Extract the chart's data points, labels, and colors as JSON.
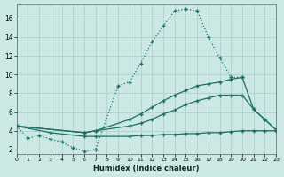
{
  "xlabel": "Humidex (Indice chaleur)",
  "bg_color": "#cce8e4",
  "grid_color": "#aaccc8",
  "line_color": "#1a7068",
  "xlim": [
    0,
    23
  ],
  "ylim": [
    1.5,
    17.5
  ],
  "xtick_vals": [
    0,
    1,
    2,
    3,
    4,
    5,
    6,
    7,
    8,
    9,
    10,
    11,
    12,
    13,
    14,
    15,
    16,
    17,
    18,
    19,
    20,
    21,
    22,
    23
  ],
  "ytick_vals": [
    2,
    4,
    6,
    8,
    10,
    12,
    14,
    16
  ],
  "curve_dotted_x": [
    0,
    1,
    2,
    3,
    4,
    5,
    6,
    7,
    9,
    10,
    11,
    12,
    13,
    14,
    15,
    16,
    17,
    18,
    19,
    20
  ],
  "curve_dotted_y": [
    4.5,
    3.2,
    3.5,
    3.1,
    2.8,
    2.2,
    1.8,
    2.0,
    8.8,
    9.2,
    11.2,
    13.5,
    15.2,
    16.8,
    17.0,
    16.8,
    14.0,
    11.8,
    9.7,
    9.7
  ],
  "curve_flat_x": [
    0,
    3,
    6,
    7,
    10,
    11,
    12,
    13,
    14,
    15,
    16,
    17,
    18,
    19,
    20,
    21,
    22,
    23
  ],
  "curve_flat_y": [
    4.5,
    3.8,
    3.4,
    3.4,
    3.4,
    3.5,
    3.5,
    3.6,
    3.6,
    3.7,
    3.7,
    3.8,
    3.8,
    3.9,
    4.0,
    4.0,
    4.0,
    4.0
  ],
  "curve_upper_x": [
    0,
    6,
    7,
    10,
    11,
    12,
    13,
    14,
    15,
    16,
    17,
    18,
    19,
    20,
    21,
    22,
    23
  ],
  "curve_upper_y": [
    4.5,
    3.8,
    4.0,
    5.2,
    5.8,
    6.5,
    7.2,
    7.8,
    8.3,
    8.8,
    9.0,
    9.2,
    9.5,
    9.7,
    6.3,
    5.2,
    4.1
  ],
  "curve_mid_x": [
    0,
    6,
    7,
    10,
    11,
    12,
    13,
    14,
    15,
    16,
    17,
    18,
    19,
    20,
    21,
    22,
    23
  ],
  "curve_mid_y": [
    4.5,
    3.8,
    4.0,
    4.5,
    4.8,
    5.2,
    5.8,
    6.2,
    6.8,
    7.2,
    7.5,
    7.8,
    7.8,
    7.8,
    6.3,
    5.2,
    4.1
  ]
}
